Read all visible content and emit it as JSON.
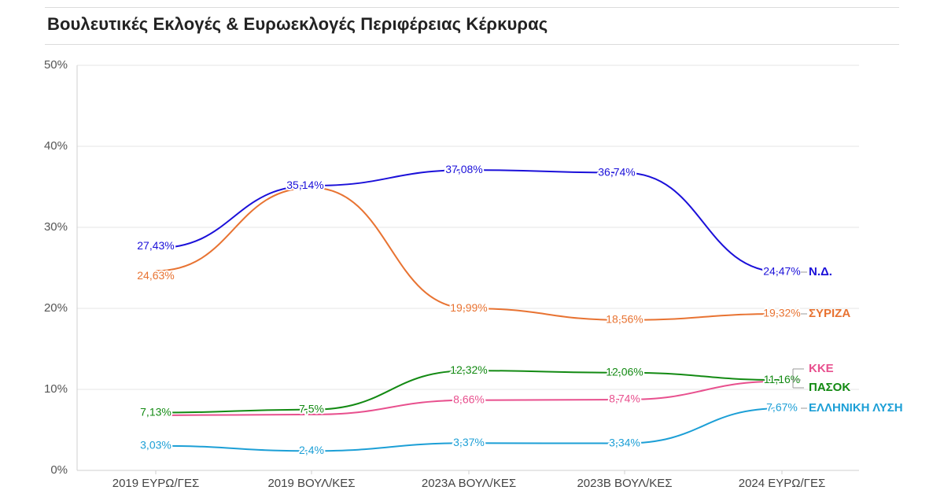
{
  "title": "Βουλευτικές Εκλογές & Ευρωεκλογές Περιφέρειας Κέρκυρας",
  "chart_data": {
    "type": "line",
    "title": "Βουλευτικές Εκλογές & Ευρωεκλογές Περιφέρειας Κέρκυρας",
    "xlabel": "",
    "ylabel": "",
    "ylim": [
      0,
      50
    ],
    "yticks": [
      "0%",
      "10%",
      "20%",
      "30%",
      "40%",
      "50%"
    ],
    "ytick_values": [
      0,
      10,
      20,
      30,
      40,
      50
    ],
    "grid": true,
    "legend": "right, at line ends",
    "categories": [
      "2019 ΕΥΡΩ/ΓΕΣ",
      "2019 ΒΟΥΛ/ΚΕΣ",
      "2023Α ΒΟΥΛ/ΚΕΣ",
      "2023Β ΒΟΥΛ/ΚΕΣ",
      "2024 ΕΥΡΩ/ΓΕΣ"
    ],
    "series": [
      {
        "name": "Ν.Δ.",
        "color": "#1b10d9",
        "values": [
          27.43,
          35.14,
          37.08,
          36.74,
          24.47
        ],
        "labels": [
          "27,43%",
          "35,14%",
          "37,08%",
          "36,74%",
          "24,47%"
        ]
      },
      {
        "name": "ΣΥΡΙΖΑ",
        "color": "#e87332",
        "values": [
          24.63,
          null,
          19.99,
          18.56,
          19.32
        ],
        "labels": [
          "24,63%",
          "",
          "19,99%",
          "18,56%",
          "19,32%"
        ]
      },
      {
        "name": "ΚΚΕ",
        "color": "#e8508e",
        "values": [
          null,
          null,
          8.66,
          8.74,
          null
        ],
        "labels": [
          "",
          "",
          "8,66%",
          "8,74%",
          ""
        ]
      },
      {
        "name": "ΠΑΣΟΚ",
        "color": "#138a13",
        "values": [
          7.13,
          7.5,
          12.32,
          12.06,
          11.16
        ],
        "labels": [
          "7,13%",
          "7,5%",
          "12,32%",
          "12,06%",
          "11,16%"
        ]
      },
      {
        "name": "ΕΛΛΗΝΙΚΗ ΛΥΣΗ",
        "color": "#1c9fd6",
        "values": [
          3.03,
          2.4,
          3.37,
          3.34,
          7.67
        ],
        "labels": [
          "3,03%",
          "2,4%",
          "3,37%",
          "3,34%",
          "7,67%"
        ]
      }
    ]
  }
}
